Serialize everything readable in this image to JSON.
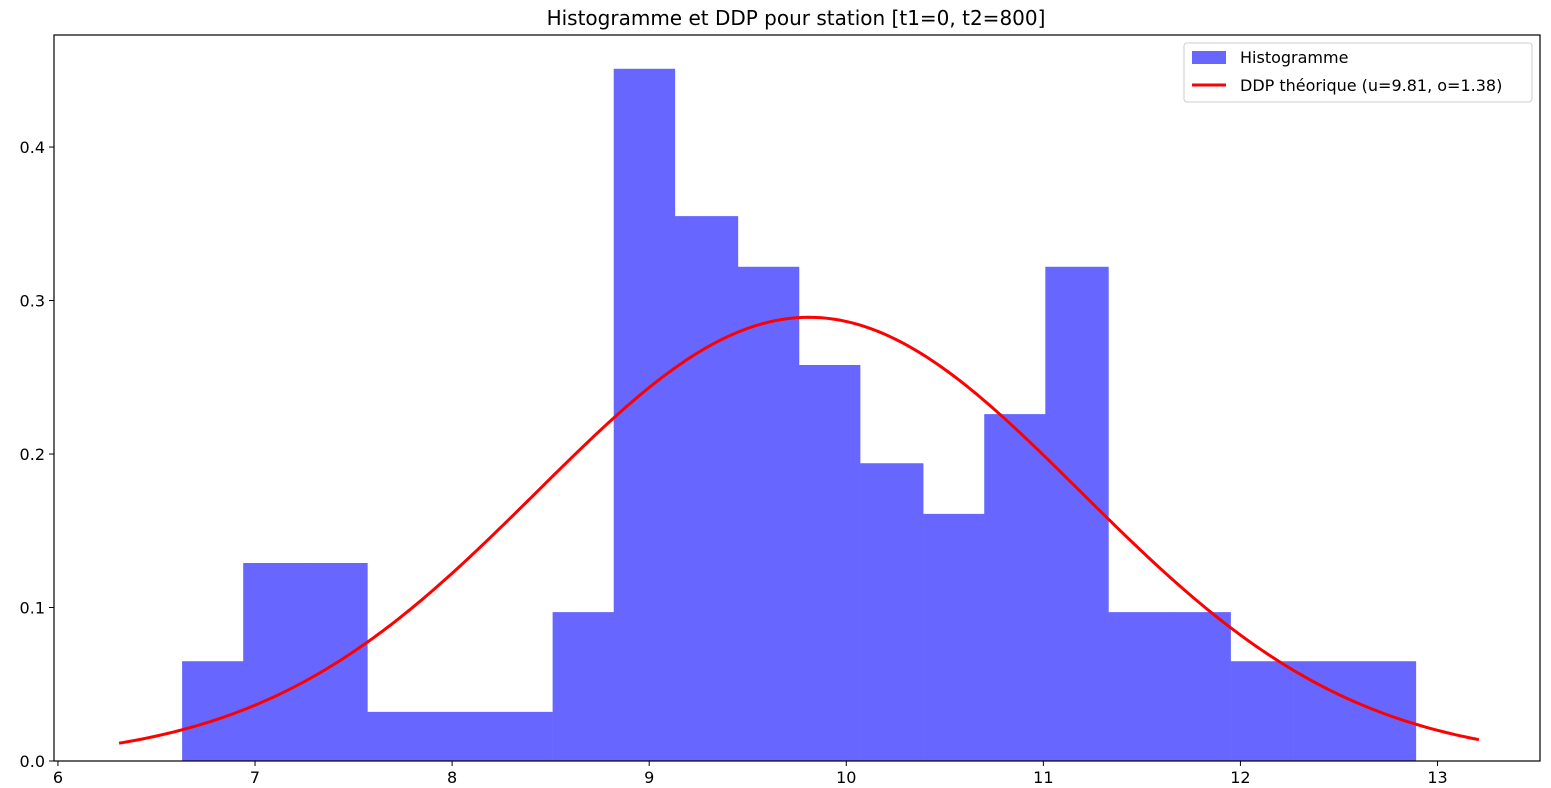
{
  "chart_data": {
    "type": "bar",
    "title": "Histogramme et DDP pour station [t1=0, t2=800]",
    "xlabel": "",
    "ylabel": "",
    "xlim": [
      5.98,
      13.52
    ],
    "ylim": [
      0,
      0.473
    ],
    "x_ticks": [
      6,
      7,
      8,
      9,
      10,
      11,
      12,
      13
    ],
    "y_ticks": [
      0.0,
      0.1,
      0.2,
      0.3,
      0.4
    ],
    "grid": false,
    "legend_position": "top-right",
    "histogram": {
      "name": "Histogramme",
      "color": "#6767ff",
      "bins": [
        {
          "x0": 6.63,
          "x1": 6.94,
          "value": 0.065
        },
        {
          "x0": 6.94,
          "x1": 7.25,
          "value": 0.129
        },
        {
          "x0": 7.25,
          "x1": 7.57,
          "value": 0.129
        },
        {
          "x0": 7.57,
          "x1": 7.88,
          "value": 0.032
        },
        {
          "x0": 7.88,
          "x1": 8.19,
          "value": 0.032
        },
        {
          "x0": 8.19,
          "x1": 8.51,
          "value": 0.032
        },
        {
          "x0": 8.51,
          "x1": 8.82,
          "value": 0.097
        },
        {
          "x0": 8.82,
          "x1": 9.13,
          "value": 0.451
        },
        {
          "x0": 9.13,
          "x1": 9.45,
          "value": 0.355
        },
        {
          "x0": 9.45,
          "x1": 9.76,
          "value": 0.322
        },
        {
          "x0": 9.76,
          "x1": 10.07,
          "value": 0.258
        },
        {
          "x0": 10.07,
          "x1": 10.39,
          "value": 0.194
        },
        {
          "x0": 10.39,
          "x1": 10.7,
          "value": 0.161
        },
        {
          "x0": 10.7,
          "x1": 11.01,
          "value": 0.226
        },
        {
          "x0": 11.01,
          "x1": 11.33,
          "value": 0.322
        },
        {
          "x0": 11.33,
          "x1": 11.64,
          "value": 0.097
        },
        {
          "x0": 11.64,
          "x1": 11.95,
          "value": 0.097
        },
        {
          "x0": 11.95,
          "x1": 12.27,
          "value": 0.065
        },
        {
          "x0": 12.27,
          "x1": 12.58,
          "value": 0.065
        },
        {
          "x0": 12.58,
          "x1": 12.89,
          "value": 0.065
        }
      ]
    },
    "curve": {
      "name": "DDP théorique (u=9.81, o=1.38)",
      "color": "#ff0000",
      "type": "normal_pdf",
      "mu": 9.81,
      "sigma": 1.38,
      "x_range": [
        6.31,
        13.21
      ]
    }
  }
}
